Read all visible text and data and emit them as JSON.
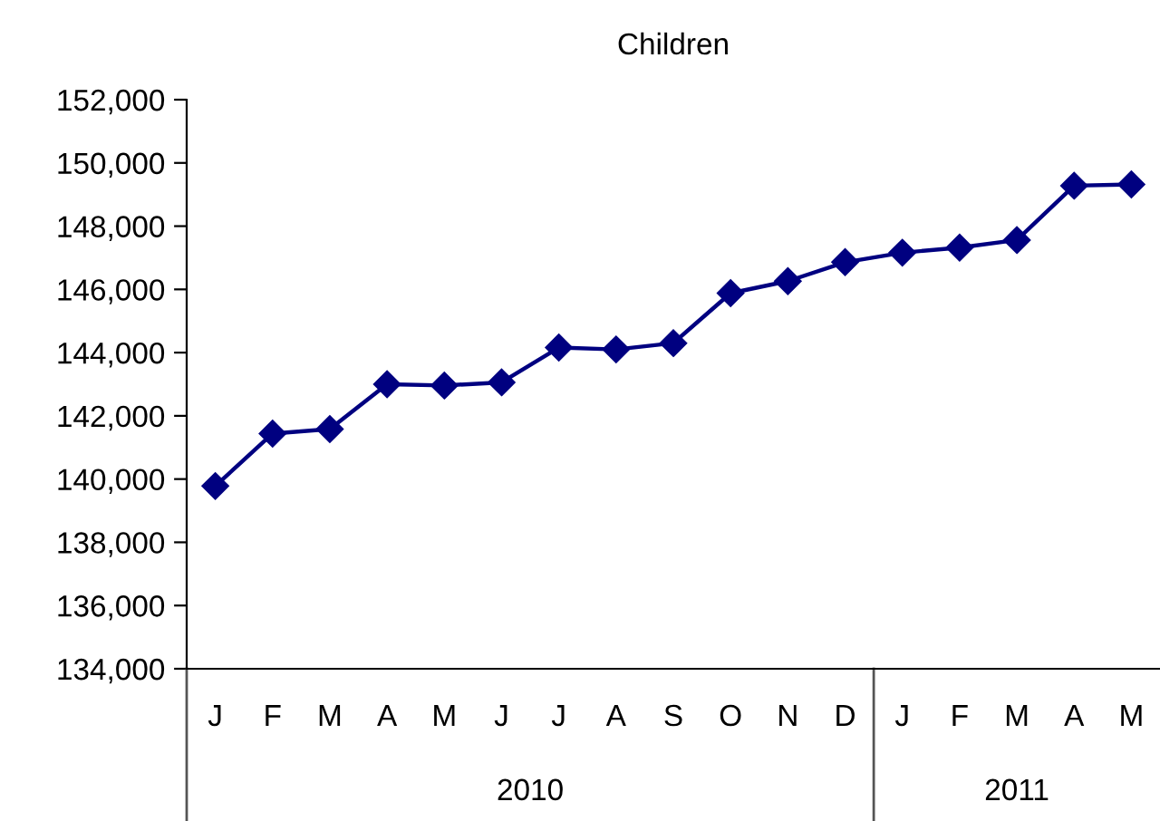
{
  "chart_data": {
    "type": "line",
    "title": "Children",
    "categories": [
      "J",
      "F",
      "M",
      "A",
      "M",
      "J",
      "J",
      "A",
      "S",
      "O",
      "N",
      "D",
      "J",
      "F",
      "M",
      "A",
      "M"
    ],
    "series": [
      {
        "color": "#000080",
        "values": [
          139780,
          141440,
          141580,
          143000,
          142960,
          143060,
          144160,
          144100,
          144300,
          145880,
          146260,
          146860,
          147160,
          147320,
          147560,
          149280,
          149320
        ]
      }
    ],
    "ylim": [
      134000,
      152000
    ],
    "yticks": [
      {
        "value": 134000,
        "label": "134,000"
      },
      {
        "value": 136000,
        "label": "136,000"
      },
      {
        "value": 138000,
        "label": "138,000"
      },
      {
        "value": 140000,
        "label": "140,000"
      },
      {
        "value": 142000,
        "label": "142,000"
      },
      {
        "value": 144000,
        "label": "144,000"
      },
      {
        "value": 146000,
        "label": "146,000"
      },
      {
        "value": 148000,
        "label": "148,000"
      },
      {
        "value": 150000,
        "label": "150,000"
      },
      {
        "value": 152000,
        "label": "152,000"
      }
    ],
    "annotations": [
      "2010",
      "2011"
    ],
    "marker": "diamond",
    "line_style": "solid",
    "grid": false
  }
}
